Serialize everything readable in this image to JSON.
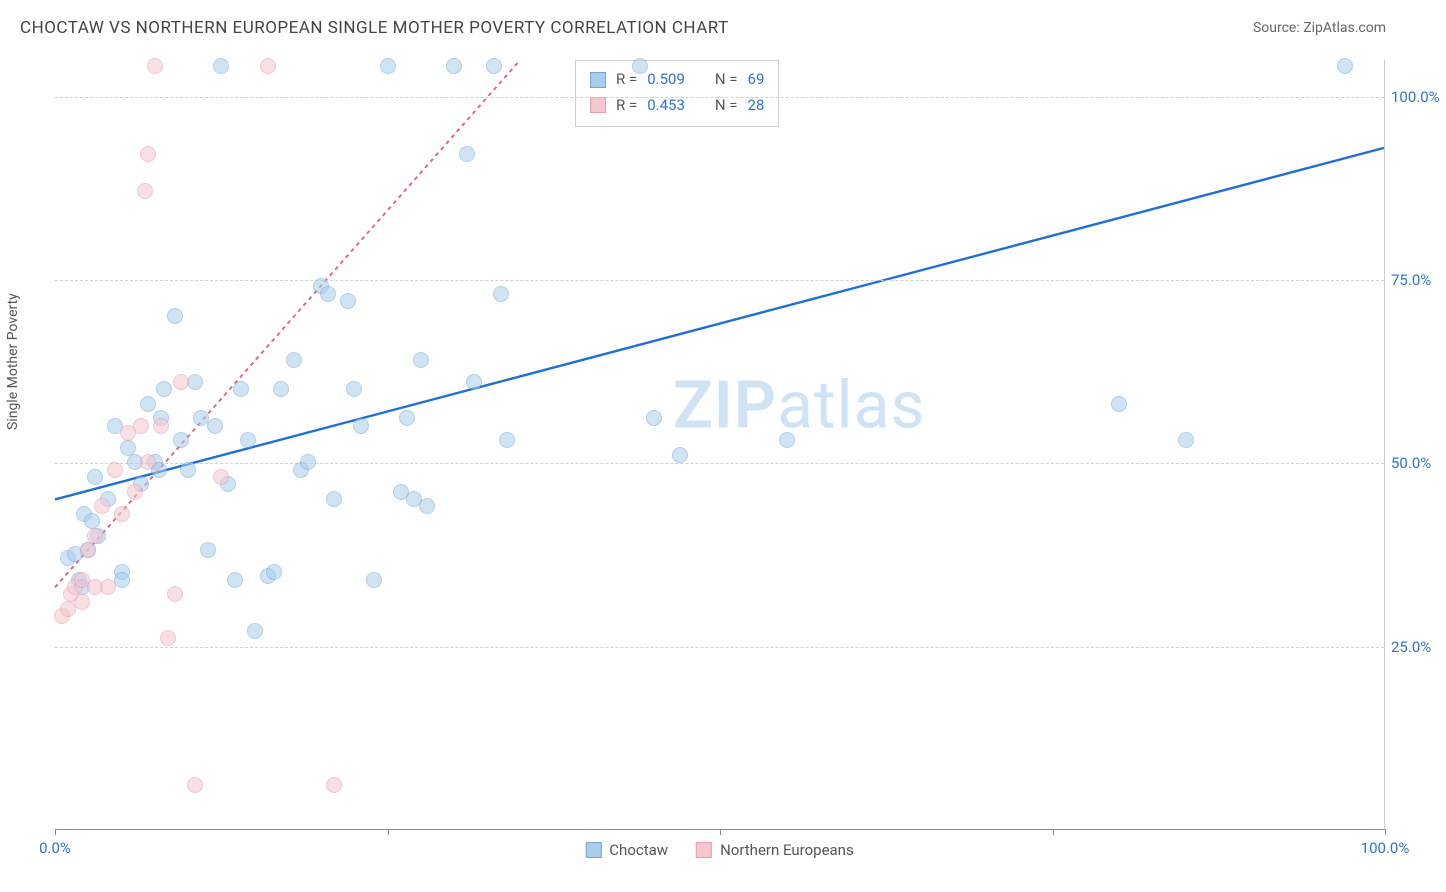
{
  "header": {
    "title": "CHOCTAW VS NORTHERN EUROPEAN SINGLE MOTHER POVERTY CORRELATION CHART",
    "source_label": "Source: ZipAtlas.com"
  },
  "watermark": {
    "bold": "ZIP",
    "light": "atlas"
  },
  "chart": {
    "type": "scatter",
    "y_axis_label": "Single Mother Poverty",
    "xlim": [
      0,
      100
    ],
    "ylim": [
      0,
      105
    ],
    "y_ticks": [
      25,
      50,
      75,
      100
    ],
    "y_tick_labels": [
      "25.0%",
      "50.0%",
      "75.0%",
      "100.0%"
    ],
    "x_ticks": [
      0,
      50,
      100
    ],
    "x_tick_labels": [
      "0.0%",
      "",
      "100.0%"
    ],
    "x_minor_ticks": [
      0,
      25,
      50,
      75,
      100
    ],
    "grid_color": "#d0d0d0",
    "tick_label_color": "#2f73d1",
    "background_color": "#ffffff",
    "point_radius": 8,
    "point_opacity": 0.55,
    "series": [
      {
        "name": "Choctaw",
        "color_fill": "#a9cdeb",
        "color_stroke": "#6fa8dc",
        "trend_color": "#1f6fd4",
        "trend_dash": "none",
        "trend_width": 2.4,
        "trend": {
          "x1": 0,
          "y1": 45,
          "x2": 100,
          "y2": 93
        },
        "stats": {
          "R": "0.509",
          "N": "69"
        },
        "points": [
          [
            1,
            37
          ],
          [
            1.5,
            37.5
          ],
          [
            1.8,
            34
          ],
          [
            2,
            33
          ],
          [
            2.2,
            43
          ],
          [
            2.5,
            38
          ],
          [
            2.8,
            42
          ],
          [
            3,
            48
          ],
          [
            3.2,
            40
          ],
          [
            4,
            45
          ],
          [
            4.5,
            55
          ],
          [
            5,
            35
          ],
          [
            5,
            34
          ],
          [
            5.5,
            52
          ],
          [
            6,
            50
          ],
          [
            6.5,
            47
          ],
          [
            7,
            58
          ],
          [
            7.5,
            50
          ],
          [
            7.8,
            49
          ],
          [
            8,
            56
          ],
          [
            8.2,
            60
          ],
          [
            9,
            70
          ],
          [
            9.5,
            53
          ],
          [
            10,
            49
          ],
          [
            10.5,
            61
          ],
          [
            11,
            56
          ],
          [
            11.5,
            38
          ],
          [
            12,
            55
          ],
          [
            12.5,
            104
          ],
          [
            13,
            47
          ],
          [
            13.5,
            34
          ],
          [
            14,
            60
          ],
          [
            14.5,
            53
          ],
          [
            15,
            27
          ],
          [
            16,
            34.5
          ],
          [
            16.5,
            35
          ],
          [
            17,
            60
          ],
          [
            18,
            64
          ],
          [
            18.5,
            49
          ],
          [
            19,
            50
          ],
          [
            20,
            74
          ],
          [
            20.5,
            73
          ],
          [
            21,
            45
          ],
          [
            22,
            72
          ],
          [
            22.5,
            60
          ],
          [
            23,
            55
          ],
          [
            24,
            34
          ],
          [
            25,
            104
          ],
          [
            26,
            46
          ],
          [
            26.5,
            56
          ],
          [
            27,
            45
          ],
          [
            27.5,
            64
          ],
          [
            28,
            44
          ],
          [
            30,
            104
          ],
          [
            31,
            92
          ],
          [
            31.5,
            61
          ],
          [
            33,
            104
          ],
          [
            33.5,
            73
          ],
          [
            34,
            53
          ],
          [
            44,
            104
          ],
          [
            45,
            56
          ],
          [
            47,
            51
          ],
          [
            55,
            53
          ],
          [
            80,
            58
          ],
          [
            85,
            53
          ],
          [
            97,
            104
          ]
        ]
      },
      {
        "name": "Northern Europeans",
        "color_fill": "#f4c6cf",
        "color_stroke": "#e89bad",
        "trend_color": "#e16a8b",
        "trend_dash": "4 4",
        "trend_width": 2.0,
        "trend": {
          "x1": 0,
          "y1": 33,
          "x2": 35,
          "y2": 105
        },
        "stats": {
          "R": "0.453",
          "N": "28"
        },
        "points": [
          [
            0.5,
            29
          ],
          [
            1,
            30
          ],
          [
            1.2,
            32
          ],
          [
            1.5,
            33
          ],
          [
            2,
            31
          ],
          [
            2,
            34
          ],
          [
            2.5,
            38
          ],
          [
            3,
            33
          ],
          [
            3,
            40
          ],
          [
            3.5,
            44
          ],
          [
            4,
            33
          ],
          [
            4.5,
            49
          ],
          [
            5,
            43
          ],
          [
            5.5,
            54
          ],
          [
            6,
            46
          ],
          [
            6.5,
            55
          ],
          [
            6.8,
            87
          ],
          [
            7,
            92
          ],
          [
            7,
            50
          ],
          [
            7.5,
            104
          ],
          [
            8,
            55
          ],
          [
            8.5,
            26
          ],
          [
            9,
            32
          ],
          [
            9.5,
            61
          ],
          [
            10.5,
            6
          ],
          [
            12.5,
            48
          ],
          [
            16,
            104
          ],
          [
            21,
            6
          ]
        ]
      }
    ],
    "legend": {
      "stats_labels": {
        "R": "R",
        "equals": "=",
        "N": "N"
      },
      "bottom": [
        {
          "label": "Choctaw",
          "fill": "#a9cdeb",
          "stroke": "#6fa8dc"
        },
        {
          "label": "Northern Europeans",
          "fill": "#f4c6cf",
          "stroke": "#e89bad"
        }
      ]
    }
  }
}
